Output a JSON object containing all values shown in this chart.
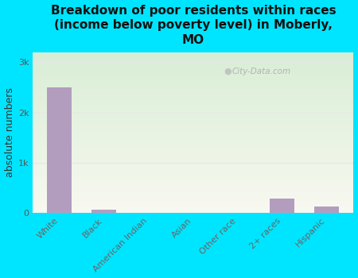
{
  "title": "Breakdown of poor residents within races\n(income below poverty level) in Moberly,\nMO",
  "categories": [
    "White",
    "Black",
    "American Indian",
    "Asian",
    "Other race",
    "2+ races",
    "Hispanic"
  ],
  "values": [
    2500,
    60,
    0,
    0,
    0,
    280,
    130
  ],
  "bar_color": "#b39dbe",
  "ylabel": "absolute numbers",
  "yticks": [
    0,
    1000,
    2000,
    3000
  ],
  "ytick_labels": [
    "0",
    "1k",
    "2k",
    "3k"
  ],
  "ylim": [
    0,
    3200
  ],
  "background_outer": "#00e5ff",
  "background_inner_top": "#ddeedd",
  "background_inner_bottom": "#f5f5ee",
  "grid_color": "#e8e8e8",
  "watermark": "City-Data.com",
  "title_fontsize": 11,
  "ylabel_fontsize": 9
}
